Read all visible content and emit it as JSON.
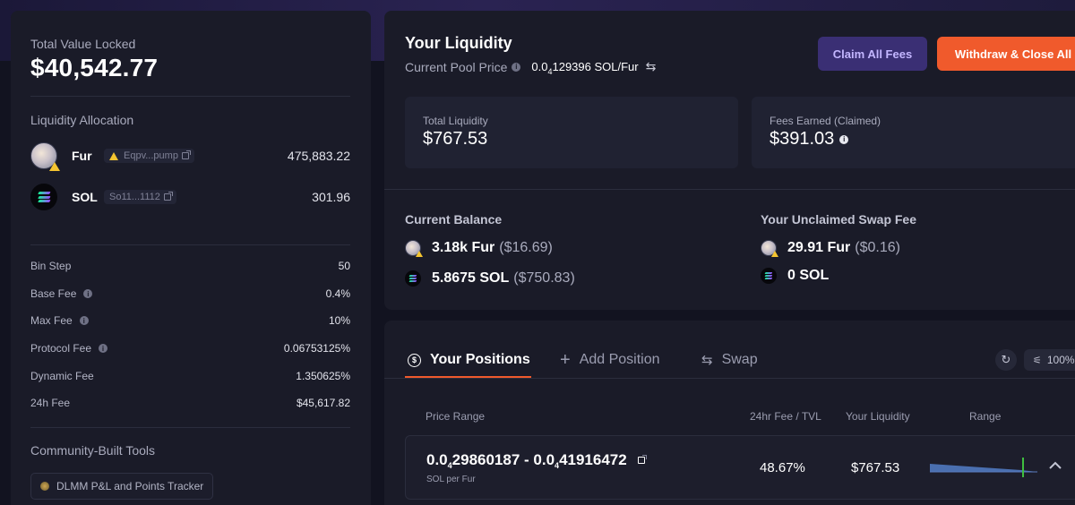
{
  "left": {
    "tvl_label": "Total Value Locked",
    "tvl_value": "$40,542.77",
    "allocation_title": "Liquidity Allocation",
    "tokens": [
      {
        "name": "Fur",
        "address": "Eqpv...pump",
        "amount": "475,883.22",
        "icon": "fur-token-icon",
        "warning": true
      },
      {
        "name": "SOL",
        "address": "So11...1112",
        "amount": "301.96",
        "icon": "sol-token-icon",
        "warning": false
      }
    ],
    "fees": [
      {
        "label": "Bin Step",
        "value": "50",
        "info": false
      },
      {
        "label": "Base Fee",
        "value": "0.4%",
        "info": true
      },
      {
        "label": "Max Fee",
        "value": "10%",
        "info": true
      },
      {
        "label": "Protocol Fee",
        "value": "0.06753125%",
        "info": true
      },
      {
        "label": "Dynamic Fee",
        "value": "1.350625%",
        "info": false
      },
      {
        "label": "24h Fee",
        "value": "$45,617.82",
        "info": false
      }
    ],
    "tools_title": "Community-Built Tools",
    "tool_label": "DLMM P&L and Points Tracker"
  },
  "liquidity": {
    "title": "Your Liquidity",
    "pool_price_label": "Current Pool Price",
    "pool_price_prefix": "0.0",
    "pool_price_sub": "4",
    "pool_price_rest": "129396 SOL/Fur",
    "claim_button": "Claim All Fees",
    "withdraw_button": "Withdraw & Close All",
    "total_liquidity_label": "Total Liquidity",
    "total_liquidity_value": "$767.53",
    "fees_earned_label": "Fees Earned (Claimed)",
    "fees_earned_value": "$391.03",
    "balance_title": "Current Balance",
    "balance": [
      {
        "amount": "3.18k Fur",
        "usd": "($16.69)",
        "icon": "fur-token-icon"
      },
      {
        "amount": "5.8675 SOL",
        "usd": "($750.83)",
        "icon": "sol-token-icon"
      }
    ],
    "unclaimed_title": "Your Unclaimed Swap Fee",
    "unclaimed": [
      {
        "amount": "29.91 Fur",
        "usd": "($0.16)",
        "icon": "fur-token-icon"
      },
      {
        "amount": "0 SOL",
        "usd": "",
        "icon": "sol-token-icon"
      }
    ]
  },
  "positions": {
    "tabs": [
      {
        "label": "Your Positions",
        "icon": "dollar-icon"
      },
      {
        "label": "Add Position",
        "icon": "plus-icon"
      },
      {
        "label": "Swap",
        "icon": "swap-icon"
      }
    ],
    "slippage": "100%",
    "columns": [
      "Price Range",
      "24hr Fee / TVL",
      "Your Liquidity",
      "Range"
    ],
    "row": {
      "range_a_prefix": "0.0",
      "range_a_sub": "4",
      "range_a_rest": "29860187",
      "range_sep": " - ",
      "range_b_prefix": "0.0",
      "range_b_sub": "4",
      "range_b_rest": "41916472",
      "unit": "SOL per Fur",
      "apr": "48.67%",
      "liquidity": "$767.53"
    }
  },
  "colors": {
    "accent": "#f05a2c",
    "claim_bg": "#3a2f74",
    "range_bar": "#4a6fb0",
    "range_marker": "#3fbf3f"
  }
}
